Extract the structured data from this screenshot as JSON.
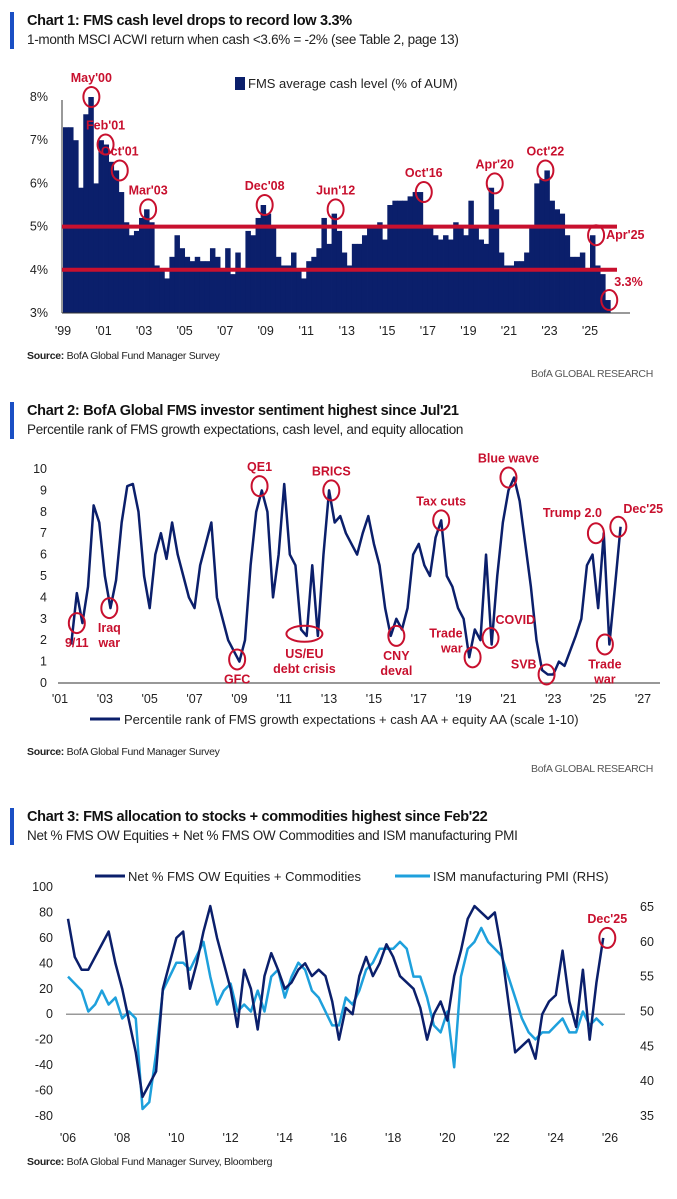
{
  "colors": {
    "navy": "#0b1f6b",
    "red": "#c8102e",
    "light_blue": "#1ea0dc",
    "accent_bar": "#1a4fc4"
  },
  "brand": "BofA GLOBAL RESEARCH",
  "chart_data": [
    {
      "type": "bar",
      "title": "Chart 1: FMS cash level drops to record low 3.3%",
      "subtitle": "1-month MSCI ACWI return when cash <3.6% = -2% (see Table 2, page 13)",
      "source_label": "Source:",
      "source": "BofA Global Fund Manager Survey",
      "legend": "FMS average cash level (% of AUM)",
      "legend_position": "top-center",
      "x_start": 1999,
      "x_step": 0.25,
      "ylim": [
        3,
        8.3
      ],
      "yticks": [
        {
          "v": 3,
          "label": "3%"
        },
        {
          "v": 4,
          "label": "4%"
        },
        {
          "v": 5,
          "label": "5%"
        },
        {
          "v": 6,
          "label": "6%"
        },
        {
          "v": 7,
          "label": "7%"
        },
        {
          "v": 8,
          "label": "8%"
        }
      ],
      "xticks": [
        {
          "v": 1999,
          "label": "'99"
        },
        {
          "v": 2001,
          "label": "'01"
        },
        {
          "v": 2003,
          "label": "'03"
        },
        {
          "v": 2005,
          "label": "'05"
        },
        {
          "v": 2007,
          "label": "'07"
        },
        {
          "v": 2009,
          "label": "'09"
        },
        {
          "v": 2011,
          "label": "'11"
        },
        {
          "v": 2013,
          "label": "'13"
        },
        {
          "v": 2015,
          "label": "'15"
        },
        {
          "v": 2017,
          "label": "'17"
        },
        {
          "v": 2019,
          "label": "'19"
        },
        {
          "v": 2021,
          "label": "'21"
        },
        {
          "v": 2023,
          "label": "'23"
        },
        {
          "v": 2025,
          "label": "'25"
        }
      ],
      "reference_lines": [
        5,
        4
      ],
      "values": [
        7.3,
        7.3,
        7.0,
        5.9,
        7.6,
        8.0,
        6.0,
        7.0,
        6.9,
        6.5,
        6.3,
        5.8,
        5.1,
        4.8,
        4.9,
        5.2,
        5.4,
        5.1,
        4.1,
        4.0,
        3.8,
        4.3,
        4.8,
        4.5,
        4.3,
        4.2,
        4.3,
        4.2,
        4.2,
        4.5,
        4.3,
        4.0,
        4.5,
        3.9,
        4.4,
        4.0,
        4.9,
        4.8,
        5.2,
        5.5,
        5.3,
        5.0,
        4.3,
        4.1,
        4.1,
        4.4,
        4.0,
        3.8,
        4.2,
        4.3,
        4.5,
        5.2,
        4.6,
        5.3,
        4.9,
        4.4,
        4.1,
        4.6,
        4.6,
        4.8,
        5.0,
        5.0,
        5.1,
        4.7,
        5.5,
        5.6,
        5.6,
        5.6,
        5.7,
        5.8,
        5.8,
        5.0,
        5.0,
        4.8,
        4.7,
        4.8,
        4.7,
        5.1,
        5.0,
        4.8,
        5.6,
        5.0,
        4.7,
        4.6,
        5.9,
        5.4,
        4.4,
        4.1,
        4.1,
        4.2,
        4.2,
        4.4,
        5.0,
        6.0,
        6.1,
        6.3,
        5.6,
        5.4,
        5.3,
        4.8,
        4.3,
        4.3,
        4.4,
        4.0,
        4.8,
        4.1,
        3.9,
        3.3
      ],
      "annotations": [
        {
          "lines": [
            "May'00"
          ],
          "x": 2000.4,
          "y": 8.0,
          "pos": "above"
        },
        {
          "lines": [
            "Feb'01"
          ],
          "x": 2001.1,
          "y": 6.9,
          "pos": "above"
        },
        {
          "lines": [
            "Oct'01"
          ],
          "x": 2001.8,
          "y": 6.3,
          "pos": "above"
        },
        {
          "lines": [
            "Mar'03"
          ],
          "x": 2003.2,
          "y": 5.4,
          "pos": "above"
        },
        {
          "lines": [
            "Dec'08"
          ],
          "x": 2008.95,
          "y": 5.5,
          "pos": "above"
        },
        {
          "lines": [
            "Jun'12"
          ],
          "x": 2012.45,
          "y": 5.4,
          "pos": "above"
        },
        {
          "lines": [
            "Oct'16"
          ],
          "x": 2016.8,
          "y": 5.8,
          "pos": "above"
        },
        {
          "lines": [
            "Apr'20"
          ],
          "x": 2020.3,
          "y": 6.0,
          "pos": "above"
        },
        {
          "lines": [
            "Oct'22"
          ],
          "x": 2022.8,
          "y": 6.3,
          "pos": "above"
        },
        {
          "lines": [
            "Apr'25"
          ],
          "x": 2025.3,
          "y": 4.8,
          "pos": "right"
        },
        {
          "lines": [
            "3.3%"
          ],
          "x": 2025.95,
          "y": 3.3,
          "pos": "above-right"
        }
      ]
    },
    {
      "type": "line",
      "title": "Chart 2: BofA Global FMS investor sentiment highest since Jul'21",
      "subtitle": "Percentile rank of FMS growth expectations, cash level, and equity allocation",
      "source_label": "Source:",
      "source": "BofA Global Fund Manager Survey",
      "legend_position": "bottom-center",
      "ylim": [
        0,
        10
      ],
      "yticks": [
        {
          "v": 0,
          "label": "0"
        },
        {
          "v": 1,
          "label": "1"
        },
        {
          "v": 2,
          "label": "2"
        },
        {
          "v": 3,
          "label": "3"
        },
        {
          "v": 4,
          "label": "4"
        },
        {
          "v": 5,
          "label": "5"
        },
        {
          "v": 6,
          "label": "6"
        },
        {
          "v": 7,
          "label": "7"
        },
        {
          "v": 8,
          "label": "8"
        },
        {
          "v": 9,
          "label": "9"
        },
        {
          "v": 10,
          "label": "10"
        }
      ],
      "xticks": [
        {
          "v": 2001,
          "label": "'01"
        },
        {
          "v": 2003,
          "label": "'03"
        },
        {
          "v": 2005,
          "label": "'05"
        },
        {
          "v": 2007,
          "label": "'07"
        },
        {
          "v": 2009,
          "label": "'09"
        },
        {
          "v": 2011,
          "label": "'11"
        },
        {
          "v": 2013,
          "label": "'13"
        },
        {
          "v": 2015,
          "label": "'15"
        },
        {
          "v": 2017,
          "label": "'17"
        },
        {
          "v": 2019,
          "label": "'19"
        },
        {
          "v": 2021,
          "label": "'21"
        },
        {
          "v": 2023,
          "label": "'23"
        },
        {
          "v": 2025,
          "label": "'25"
        },
        {
          "v": 2027,
          "label": "'27"
        }
      ],
      "series": [
        {
          "name": "Percentile rank of FMS growth expectations + cash AA + equity AA (scale 1-10)",
          "x_start": 2001.5,
          "x_step": 0.25,
          "values": [
            1.8,
            4.2,
            2.8,
            4.5,
            8.3,
            7.5,
            5.0,
            3.5,
            4.8,
            7.5,
            9.2,
            9.3,
            8.0,
            5.0,
            3.5,
            6.0,
            7.0,
            5.8,
            7.5,
            6.0,
            5.0,
            4.0,
            3.5,
            5.5,
            6.5,
            7.5,
            4.0,
            3.0,
            2.0,
            1.5,
            1.0,
            2.0,
            5.5,
            8.0,
            9.0,
            8.0,
            4.0,
            6.0,
            9.3,
            6.0,
            5.5,
            2.5,
            2.2,
            5.5,
            2.2,
            6.0,
            9.0,
            7.5,
            7.8,
            7.0,
            6.5,
            6.0,
            7.0,
            7.8,
            6.5,
            5.5,
            3.5,
            2.2,
            3.0,
            2.5,
            3.5,
            6.0,
            6.5,
            5.5,
            5.0,
            6.8,
            7.6,
            5.0,
            4.5,
            3.5,
            3.0,
            1.2,
            2.5,
            2.0,
            6.0,
            1.8,
            5.0,
            7.5,
            9.0,
            9.6,
            8.5,
            6.5,
            4.5,
            2.0,
            0.6,
            0.4,
            0.4,
            1.0,
            0.8,
            1.5,
            2.2,
            3.0,
            5.5,
            6.0,
            3.5,
            7.0,
            1.8,
            4.5,
            7.3
          ]
        }
      ],
      "annotations": [
        {
          "lines": [
            "9/11"
          ],
          "x": 2001.75,
          "y": 2.8,
          "pos": "below"
        },
        {
          "lines": [
            "Iraq",
            "war"
          ],
          "x": 2003.2,
          "y": 3.5,
          "pos": "below"
        },
        {
          "lines": [
            "GFC"
          ],
          "x": 2008.9,
          "y": 1.1,
          "pos": "below"
        },
        {
          "lines": [
            "QE1"
          ],
          "x": 2009.9,
          "y": 9.2,
          "pos": "above"
        },
        {
          "lines": [
            "US/EU",
            "debt crisis"
          ],
          "x": 2011.9,
          "y": 2.3,
          "pos": "below",
          "wide": true
        },
        {
          "lines": [
            "BRICS"
          ],
          "x": 2013.1,
          "y": 9.0,
          "pos": "above"
        },
        {
          "lines": [
            "CNY",
            "deval"
          ],
          "x": 2016.0,
          "y": 2.2,
          "pos": "below"
        },
        {
          "lines": [
            "Tax cuts"
          ],
          "x": 2018.0,
          "y": 7.6,
          "pos": "above"
        },
        {
          "lines": [
            "Trade",
            "war"
          ],
          "x": 2019.4,
          "y": 1.2,
          "pos": "left"
        },
        {
          "lines": [
            "COVID"
          ],
          "x": 2020.2,
          "y": 2.1,
          "pos": "above-right"
        },
        {
          "lines": [
            "Blue wave"
          ],
          "x": 2021.0,
          "y": 9.6,
          "pos": "above"
        },
        {
          "lines": [
            "SVB"
          ],
          "x": 2022.7,
          "y": 0.4,
          "pos": "left"
        },
        {
          "lines": [
            "Trump 2.0"
          ],
          "x": 2024.9,
          "y": 7.0,
          "pos": "above-left"
        },
        {
          "lines": [
            "Trade",
            "war"
          ],
          "x": 2025.3,
          "y": 1.8,
          "pos": "below"
        },
        {
          "lines": [
            "Dec'25"
          ],
          "x": 2025.9,
          "y": 7.3,
          "pos": "above-right"
        }
      ]
    },
    {
      "type": "line",
      "title": "Chart 3: FMS allocation to stocks + commodities highest since Feb'22",
      "subtitle": "Net % FMS OW Equities + Net % FMS OW Commodities and ISM manufacturing PMI",
      "source_label": "Source:",
      "source": "BofA Global Fund Manager Survey, Bloomberg",
      "legend_position": "top-center",
      "ylim": [
        -80,
        100
      ],
      "y2lim": [
        35,
        65
      ],
      "yticks": [
        {
          "v": 100,
          "label": "100"
        },
        {
          "v": 80,
          "label": "80"
        },
        {
          "v": 60,
          "label": "60"
        },
        {
          "v": 40,
          "label": "40"
        },
        {
          "v": 20,
          "label": "20"
        },
        {
          "v": 0,
          "label": "0"
        },
        {
          "v": -20,
          "label": "-20"
        },
        {
          "v": -40,
          "label": "-40"
        },
        {
          "v": -60,
          "label": "-60"
        },
        {
          "v": -80,
          "label": "-80"
        }
      ],
      "y2ticks": [
        {
          "v": 65,
          "label": "65"
        },
        {
          "v": 60,
          "label": "60"
        },
        {
          "v": 55,
          "label": "55"
        },
        {
          "v": 50,
          "label": "50"
        },
        {
          "v": 45,
          "label": "45"
        },
        {
          "v": 40,
          "label": "40"
        },
        {
          "v": 35,
          "label": "35"
        }
      ],
      "xticks": [
        {
          "v": 2006,
          "label": "'06"
        },
        {
          "v": 2008,
          "label": "'08"
        },
        {
          "v": 2010,
          "label": "'10"
        },
        {
          "v": 2012,
          "label": "'12"
        },
        {
          "v": 2014,
          "label": "'14"
        },
        {
          "v": 2016,
          "label": "'16"
        },
        {
          "v": 2018,
          "label": "'18"
        },
        {
          "v": 2020,
          "label": "'20"
        },
        {
          "v": 2022,
          "label": "'22"
        },
        {
          "v": 2024,
          "label": "'24"
        },
        {
          "v": 2026,
          "label": "'26"
        }
      ],
      "series": [
        {
          "name": "Net % FMS OW Equities + Commodities",
          "axis": "left",
          "color": "#0b1f6b",
          "x_start": 2006.0,
          "x_step": 0.25,
          "values": [
            75,
            45,
            35,
            35,
            45,
            55,
            65,
            40,
            20,
            -5,
            -30,
            -65,
            -55,
            -45,
            20,
            40,
            60,
            65,
            20,
            40,
            65,
            85,
            60,
            40,
            20,
            -10,
            35,
            20,
            -12,
            30,
            48,
            35,
            20,
            25,
            35,
            40,
            30,
            35,
            30,
            10,
            -20,
            5,
            0,
            30,
            45,
            30,
            40,
            55,
            45,
            30,
            25,
            20,
            5,
            -20,
            0,
            10,
            -5,
            30,
            50,
            75,
            85,
            80,
            75,
            80,
            50,
            10,
            -30,
            -25,
            -20,
            -35,
            0,
            10,
            15,
            50,
            10,
            -10,
            35,
            -20,
            25,
            60
          ]
        },
        {
          "name": "ISM manufacturing PMI (RHS)",
          "axis": "right",
          "color": "#1ea0dc",
          "x_start": 2006.0,
          "x_step": 0.25,
          "values": [
            55,
            54,
            53,
            50,
            51,
            53,
            51,
            52,
            49,
            50,
            49,
            36,
            37,
            44,
            53,
            55,
            57,
            57,
            56,
            58,
            60,
            55,
            51,
            53,
            54,
            50,
            51,
            50,
            53,
            50,
            55,
            56,
            52,
            55,
            57,
            56,
            53,
            52,
            50,
            48,
            48,
            52,
            51,
            53,
            56,
            57,
            59,
            59,
            59,
            60,
            59,
            55,
            55,
            52,
            48,
            47,
            50,
            42,
            55,
            59,
            60,
            62,
            60,
            59,
            58,
            55,
            52,
            49,
            47,
            46,
            47,
            47,
            48,
            49,
            47,
            47,
            50,
            48,
            49,
            48
          ]
        }
      ],
      "annotations": [
        {
          "lines": [
            "Dec'25"
          ],
          "x": 2025.9,
          "y": 60,
          "pos": "above"
        }
      ]
    }
  ]
}
